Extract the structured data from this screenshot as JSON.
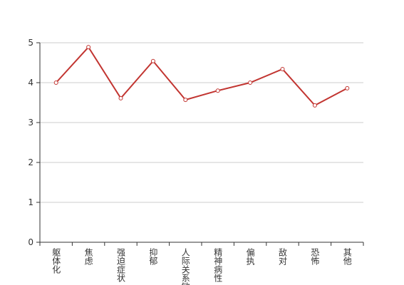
{
  "chart_data": {
    "type": "line",
    "categories": [
      "躯体化",
      "焦虑",
      "强迫症状",
      "抑郁",
      "人际关系敏感",
      "精神病性",
      "偏执",
      "敌对",
      "恐怖",
      "其他"
    ],
    "values": [
      4.0,
      4.89,
      3.61,
      4.54,
      3.57,
      3.8,
      4.0,
      4.34,
      3.43,
      3.86
    ],
    "color": "#c23531",
    "ylim": [
      0,
      5
    ],
    "yticks": [
      0,
      1,
      2,
      3,
      4,
      5
    ],
    "grid": true
  }
}
